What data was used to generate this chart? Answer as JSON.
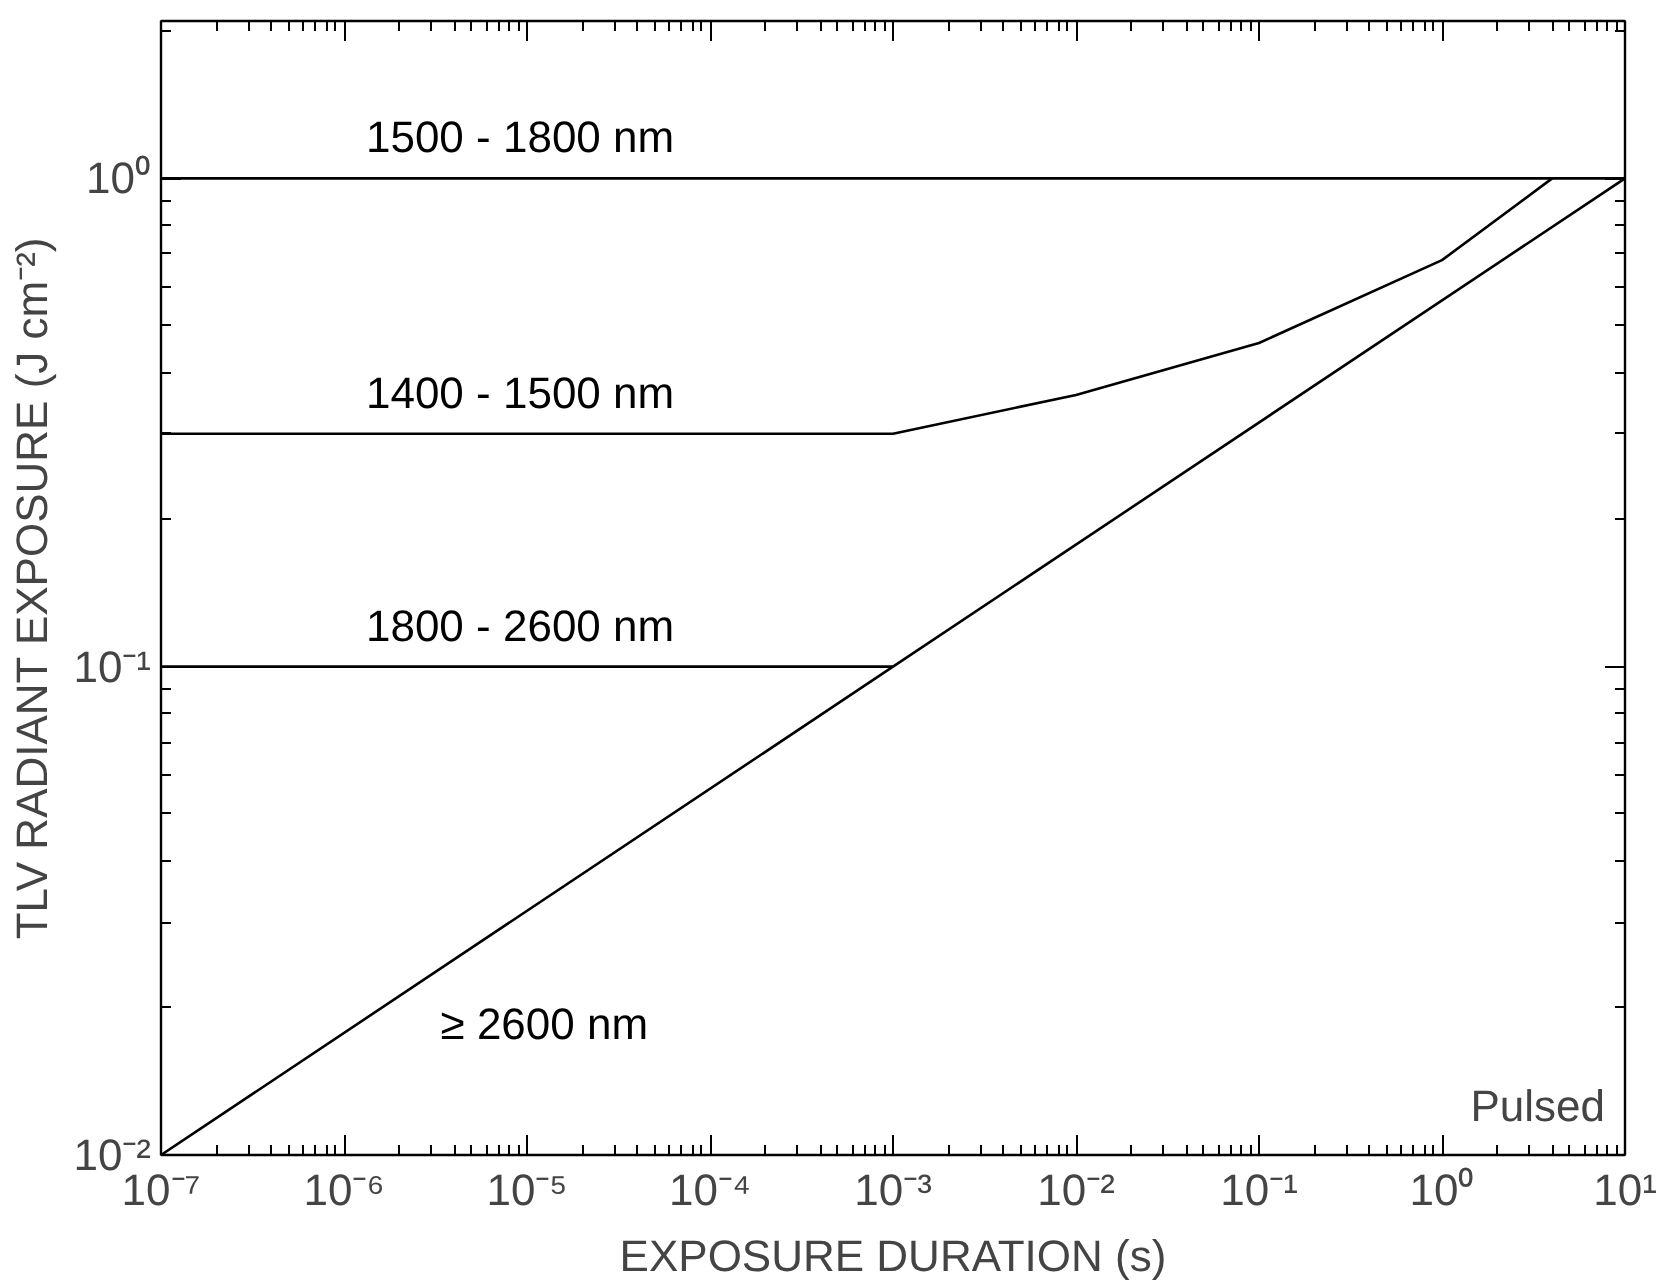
{
  "chart_data": {
    "type": "line",
    "xlabel": "EXPOSURE DURATION (s)",
    "ylabel": "TLV RADIANT EXPOSURE (J cm⁻²)",
    "log": "xy",
    "grid": false,
    "marker": "none",
    "line_style": "solid",
    "xlim": [
      1e-07,
      10
    ],
    "ylim": [
      0.01,
      2.1
    ],
    "xticks": [
      {
        "value": 1e-07,
        "label": "10⁻⁷"
      },
      {
        "value": 1e-06,
        "label": "10⁻⁶"
      },
      {
        "value": 1e-05,
        "label": "10⁻⁵"
      },
      {
        "value": 0.0001,
        "label": "10⁻⁴"
      },
      {
        "value": 0.001,
        "label": "10⁻³"
      },
      {
        "value": 0.01,
        "label": "10⁻²"
      },
      {
        "value": 0.1,
        "label": "10⁻¹"
      },
      {
        "value": 1,
        "label": "10⁰"
      },
      {
        "value": 10,
        "label": "10¹"
      }
    ],
    "yticks": [
      {
        "value": 0.01,
        "label": "10⁻²"
      },
      {
        "value": 0.1,
        "label": "10⁻¹"
      },
      {
        "value": 1,
        "label": "10⁰"
      }
    ],
    "series": [
      {
        "name": "1500 - 1800 nm",
        "color": "#000000",
        "x": [
          1e-07,
          10
        ],
        "values": [
          1,
          1
        ]
      },
      {
        "name": "1400 - 1500 nm",
        "color": "#000000",
        "x": [
          1e-07,
          0.001,
          0.01,
          0.1,
          1,
          4
        ],
        "values": [
          0.3,
          0.3,
          0.36,
          0.46,
          0.68,
          1
        ]
      },
      {
        "name": "1800 - 2600 nm",
        "color": "#000000",
        "x": [
          1e-07,
          0.001
        ],
        "values": [
          0.1,
          0.1
        ]
      },
      {
        "name": "≥ 2600 nm",
        "color": "#000000",
        "x": [
          1e-07,
          0.001,
          10
        ],
        "values": [
          0.01,
          0.1,
          1
        ]
      }
    ],
    "annotations": [
      "Pulsed"
    ]
  }
}
